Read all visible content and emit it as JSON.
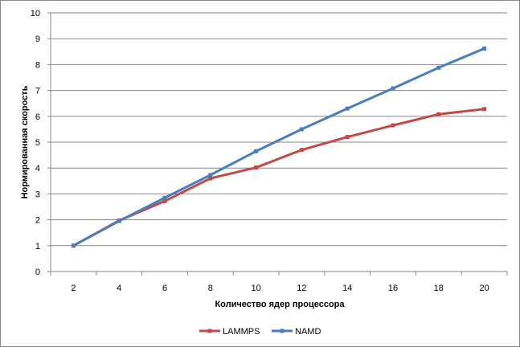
{
  "chart_data": {
    "type": "line",
    "xlabel": "Количество  ядер процессора",
    "ylabel": "Нормированная  скорость",
    "x": [
      2,
      4,
      6,
      8,
      10,
      12,
      14,
      16,
      18,
      20
    ],
    "x_tick_labels": [
      "2",
      "4",
      "6",
      "8",
      "10",
      "12",
      "14",
      "16",
      "18",
      "20"
    ],
    "ylim": [
      0,
      10
    ],
    "y_ticks": [
      0,
      1,
      2,
      3,
      4,
      5,
      6,
      7,
      8,
      9,
      10
    ],
    "y_tick_labels": [
      "0",
      "1",
      "2",
      "3",
      "4",
      "5",
      "6",
      "7",
      "8",
      "9",
      "10"
    ],
    "grid": "horizontal",
    "legend_position": "bottom",
    "series": [
      {
        "name": "LAMMPS",
        "color": "#be4b48",
        "values": [
          1.0,
          1.97,
          2.72,
          3.6,
          4.02,
          4.7,
          5.2,
          5.65,
          6.08,
          6.28
        ]
      },
      {
        "name": "NAMD",
        "color": "#4a7ebb",
        "values": [
          1.0,
          1.95,
          2.85,
          3.73,
          4.65,
          5.5,
          6.3,
          7.08,
          7.88,
          8.62
        ]
      }
    ]
  }
}
